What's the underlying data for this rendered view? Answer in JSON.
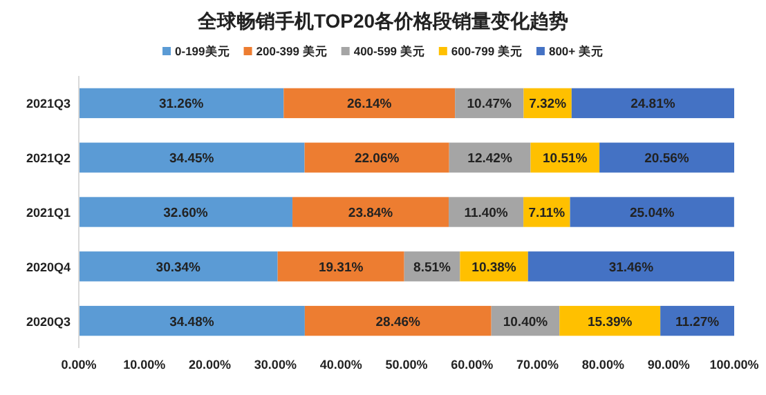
{
  "chart_data": {
    "type": "bar",
    "orientation": "horizontal",
    "stacked": true,
    "title": "全球畅销手机TOP20各价格段销量变化趋势",
    "categories": [
      "2021Q3",
      "2021Q2",
      "2021Q1",
      "2020Q4",
      "2020Q3"
    ],
    "series": [
      {
        "name": "0-199美元",
        "color": "#5b9bd5",
        "values": [
          31.26,
          34.45,
          32.6,
          30.34,
          34.48
        ],
        "value_labels": [
          "31.26%",
          "34.45%",
          "32.60%",
          "30.34%",
          "34.48%"
        ]
      },
      {
        "name": "200-399 美元",
        "color": "#ed7d31",
        "values": [
          26.14,
          22.06,
          23.84,
          19.31,
          28.46
        ],
        "value_labels": [
          "26.14%",
          "22.06%",
          "23.84%",
          "19.31%",
          "28.46%"
        ]
      },
      {
        "name": "400-599 美元",
        "color": "#a5a5a5",
        "values": [
          10.47,
          12.42,
          11.4,
          8.51,
          10.4
        ],
        "value_labels": [
          "10.47%",
          "12.42%",
          "11.40%",
          "8.51%",
          "10.40%"
        ]
      },
      {
        "name": "600-799 美元",
        "color": "#ffc000",
        "values": [
          7.32,
          10.51,
          7.11,
          10.38,
          15.39
        ],
        "value_labels": [
          "7.32%",
          "10.51%",
          "7.11%",
          "10.38%",
          "15.39%"
        ]
      },
      {
        "name": "800+ 美元",
        "color": "#4472c4",
        "values": [
          24.81,
          20.56,
          25.04,
          31.46,
          11.27
        ],
        "value_labels": [
          "24.81%",
          "20.56%",
          "25.04%",
          "31.46%",
          "11.27%"
        ]
      }
    ],
    "xlim": [
      0,
      100
    ],
    "xticks": [
      {
        "value": 0,
        "label": "0.00%"
      },
      {
        "value": 10,
        "label": "10.00%"
      },
      {
        "value": 20,
        "label": "20.00%"
      },
      {
        "value": 30,
        "label": "30.00%"
      },
      {
        "value": 40,
        "label": "40.00%"
      },
      {
        "value": 50,
        "label": "50.00%"
      },
      {
        "value": 60,
        "label": "60.00%"
      },
      {
        "value": 70,
        "label": "70.00%"
      },
      {
        "value": 80,
        "label": "80.00%"
      },
      {
        "value": 90,
        "label": "90.00%"
      },
      {
        "value": 100,
        "label": "100.00%"
      }
    ],
    "legend": "top",
    "grid": false
  }
}
